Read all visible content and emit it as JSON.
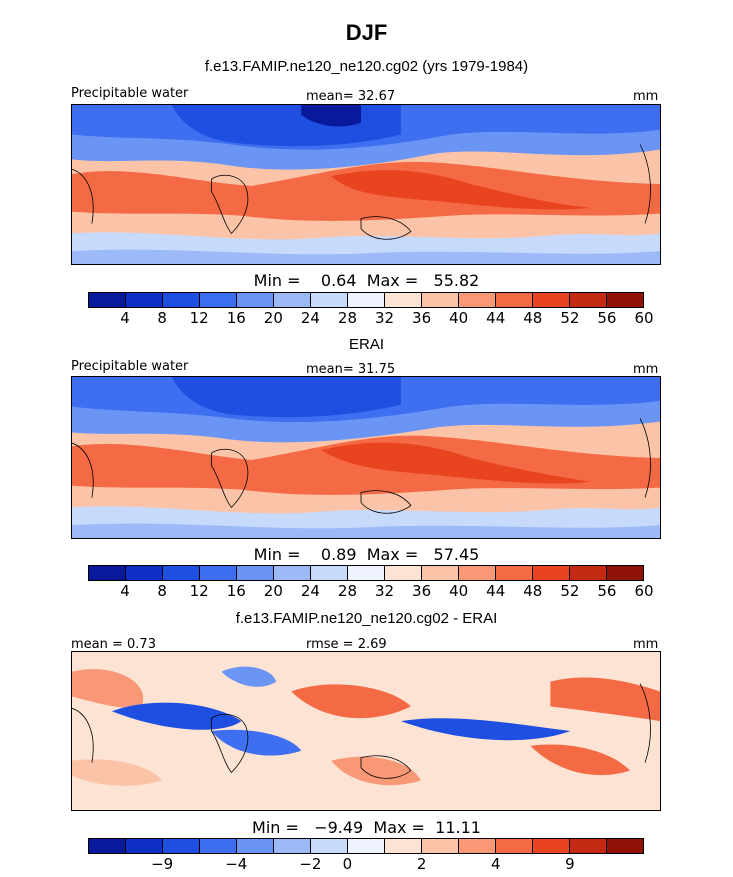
{
  "title": "DJF",
  "panels": [
    {
      "subtitle": "f.e13.FAMIP.ne120_ne120.cg02 (yrs 1979-1984)",
      "left_label": "Precipitable water",
      "center_label": "mean=  32.67",
      "right_label": "mm",
      "stats": "Min =    0.64  Max =   55.82",
      "colorbar_ticks": [
        "4",
        "8",
        "12",
        "16",
        "20",
        "24",
        "28",
        "32",
        "36",
        "40",
        "44",
        "48",
        "52",
        "56",
        "60"
      ],
      "kind": "field"
    },
    {
      "subtitle": "ERAI",
      "left_label": "Precipitable water",
      "center_label": "mean=  31.75",
      "right_label": "mm",
      "stats": "Min =    0.89  Max =   57.45",
      "colorbar_ticks": [
        "4",
        "8",
        "12",
        "16",
        "20",
        "24",
        "28",
        "32",
        "36",
        "40",
        "44",
        "48",
        "52",
        "56",
        "60"
      ],
      "kind": "field"
    },
    {
      "subtitle": "f.e13.FAMIP.ne120_ne120.cg02 - ERAI",
      "left_label": "mean =   0.73",
      "center_label": "rmse =    2.69",
      "right_label": "mm",
      "stats": "Min =   −9.49  Max =  11.11",
      "colorbar_ticks": [
        "−9",
        "−4",
        "−2",
        "0",
        "2",
        "4",
        "9"
      ],
      "kind": "diff"
    }
  ],
  "colors": {
    "field_scale": [
      "#08199c",
      "#0d2fc4",
      "#1f4fe0",
      "#3d6ff0",
      "#6b95f5",
      "#9cbaf8",
      "#c8dafb",
      "#eef3fd",
      "#fde3d4",
      "#fbc4a8",
      "#f89876",
      "#f46a45",
      "#e84420",
      "#c22a12",
      "#8e1306"
    ],
    "diff_scale": [
      "#08199c",
      "#0d2fc4",
      "#1f4fe0",
      "#3d6ff0",
      "#6b95f5",
      "#9cbaf8",
      "#c8dafb",
      "#eef3fd",
      "#fde3d4",
      "#fbc4a8",
      "#f89876",
      "#f46a45",
      "#e84420",
      "#c22a12",
      "#8e1306"
    ]
  }
}
